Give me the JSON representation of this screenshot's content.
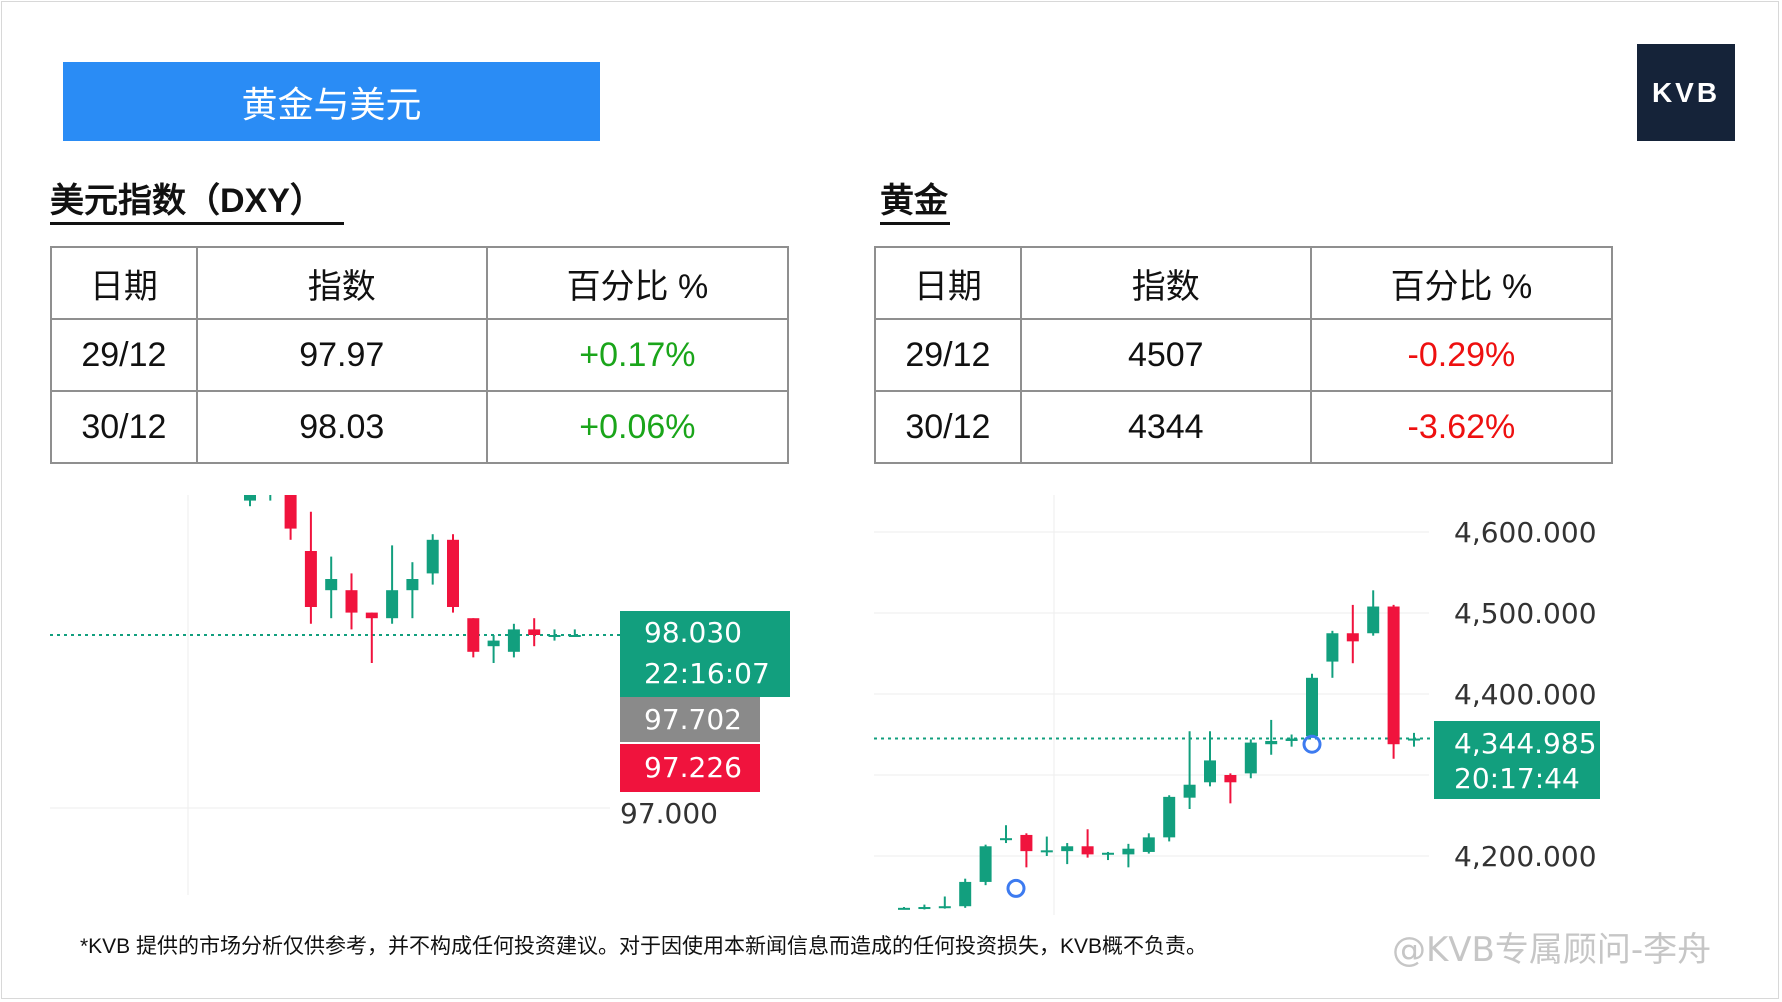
{
  "banner": {
    "title": "黄金与美元"
  },
  "logo": {
    "text": "KVB"
  },
  "dxy": {
    "title": "美元指数（DXY）",
    "headers": [
      "日期",
      "指数",
      "百分比 %"
    ],
    "rows": [
      {
        "date": "29/12",
        "index": "97.97",
        "pct": "+0.17%"
      },
      {
        "date": "30/12",
        "index": "98.03",
        "pct": "+0.06%"
      }
    ],
    "pct_color": "#1aa51a"
  },
  "gold": {
    "title": "黄金",
    "headers": [
      "日期",
      "指数",
      "百分比 %"
    ],
    "rows": [
      {
        "date": "29/12",
        "index": "4507",
        "pct": "-0.29%"
      },
      {
        "date": "30/12",
        "index": "4344",
        "pct": "-3.62%"
      }
    ],
    "pct_color": "#ee1010"
  },
  "chart_data": [
    {
      "type": "candlestick",
      "title": "",
      "price_axis_labels": [
        "97.000"
      ],
      "last_price": "98.030",
      "timer": "22:16:07",
      "marker_labels": [
        "97.702",
        "97.226"
      ],
      "candles": [
        {
          "o": 98.27,
          "c": 98.3,
          "h": 98.31,
          "l": 98.26
        },
        {
          "o": 98.28,
          "c": 98.29,
          "h": 98.3,
          "l": 98.27
        },
        {
          "o": 98.28,
          "c": 98.22,
          "h": 98.28,
          "l": 98.2
        },
        {
          "o": 98.18,
          "c": 98.08,
          "h": 98.25,
          "l": 98.05
        },
        {
          "o": 98.11,
          "c": 98.13,
          "h": 98.17,
          "l": 98.06
        },
        {
          "o": 98.11,
          "c": 98.07,
          "h": 98.14,
          "l": 98.04
        },
        {
          "o": 98.07,
          "c": 98.06,
          "h": 98.07,
          "l": 97.98
        },
        {
          "o": 98.06,
          "c": 98.11,
          "h": 98.19,
          "l": 98.05
        },
        {
          "o": 98.11,
          "c": 98.13,
          "h": 98.16,
          "l": 98.06
        },
        {
          "o": 98.14,
          "c": 98.2,
          "h": 98.21,
          "l": 98.12
        },
        {
          "o": 98.2,
          "c": 98.08,
          "h": 98.21,
          "l": 98.07
        },
        {
          "o": 98.06,
          "c": 98.0,
          "h": 98.06,
          "l": 97.99
        },
        {
          "o": 98.01,
          "c": 98.02,
          "h": 98.03,
          "l": 97.98
        },
        {
          "o": 98.0,
          "c": 98.04,
          "h": 98.05,
          "l": 97.99
        },
        {
          "o": 98.04,
          "c": 98.03,
          "h": 98.06,
          "l": 98.01
        },
        {
          "o": 98.03,
          "c": 98.03,
          "h": 98.04,
          "l": 98.02
        },
        {
          "o": 98.03,
          "c": 98.03,
          "h": 98.04,
          "l": 98.03
        }
      ]
    },
    {
      "type": "candlestick",
      "title": "",
      "price_axis_labels": [
        "4,600.000",
        "4,500.000",
        "4,400.000",
        "4,200.000"
      ],
      "last_price": "4,344.985",
      "timer": "20:17:44",
      "candles": [
        {
          "o": 4135,
          "c": 4136,
          "h": 4137,
          "l": 4134
        },
        {
          "o": 4135,
          "c": 4137,
          "h": 4140,
          "l": 4134
        },
        {
          "o": 4137,
          "c": 4138,
          "h": 4150,
          "l": 4135
        },
        {
          "o": 4138,
          "c": 4168,
          "h": 4172,
          "l": 4136
        },
        {
          "o": 4168,
          "c": 4212,
          "h": 4214,
          "l": 4164
        },
        {
          "o": 4222,
          "c": 4222,
          "h": 4238,
          "l": 4216
        },
        {
          "o": 4226,
          "c": 4206,
          "h": 4228,
          "l": 4186
        },
        {
          "o": 4206,
          "c": 4207,
          "h": 4224,
          "l": 4200
        },
        {
          "o": 4206,
          "c": 4212,
          "h": 4216,
          "l": 4190
        },
        {
          "o": 4212,
          "c": 4202,
          "h": 4233,
          "l": 4198
        },
        {
          "o": 4202,
          "c": 4204,
          "h": 4205,
          "l": 4195
        },
        {
          "o": 4202,
          "c": 4209,
          "h": 4215,
          "l": 4186
        },
        {
          "o": 4205,
          "c": 4223,
          "h": 4228,
          "l": 4203
        },
        {
          "o": 4223,
          "c": 4273,
          "h": 4275,
          "l": 4218
        },
        {
          "o": 4272,
          "c": 4288,
          "h": 4354,
          "l": 4258
        },
        {
          "o": 4291,
          "c": 4318,
          "h": 4354,
          "l": 4286
        },
        {
          "o": 4300,
          "c": 4291,
          "h": 4302,
          "l": 4265
        },
        {
          "o": 4302,
          "c": 4340,
          "h": 4344,
          "l": 4296
        },
        {
          "o": 4338,
          "c": 4342,
          "h": 4368,
          "l": 4325
        },
        {
          "o": 4342,
          "c": 4345,
          "h": 4350,
          "l": 4335
        },
        {
          "o": 4348,
          "c": 4420,
          "h": 4425,
          "l": 4346
        },
        {
          "o": 4440,
          "c": 4475,
          "h": 4478,
          "l": 4420
        },
        {
          "o": 4475,
          "c": 4465,
          "h": 4510,
          "l": 4438
        },
        {
          "o": 4475,
          "c": 4508,
          "h": 4528,
          "l": 4472
        },
        {
          "o": 4508,
          "c": 4338,
          "h": 4510,
          "l": 4320
        },
        {
          "o": 4343,
          "c": 4345,
          "h": 4352,
          "l": 4335
        }
      ]
    }
  ],
  "disclaimer": "*KVB 提供的市场分析仅供参考，并不构成任何投资建议。对于因使用本新闻信息而造成的任何投资损失，KVB概不负责。",
  "watermark": "@KVB专属顾问-李舟"
}
